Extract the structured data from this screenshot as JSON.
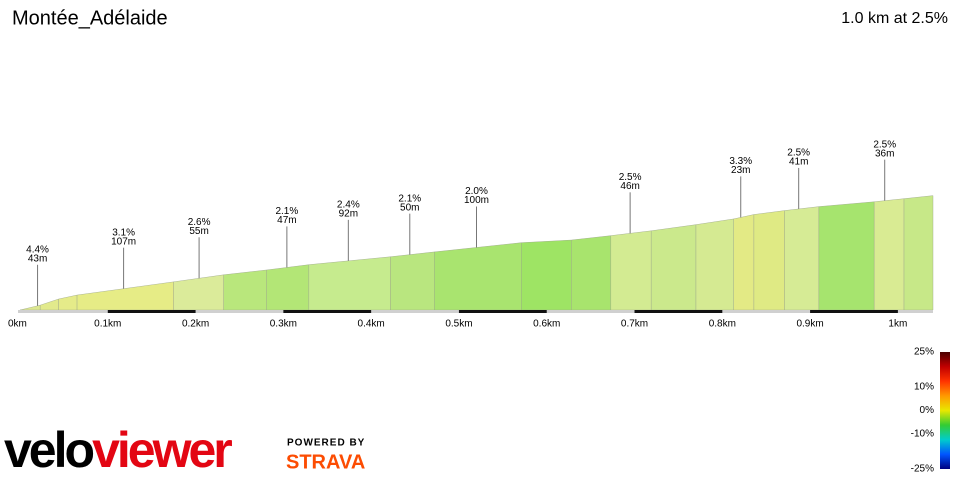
{
  "chart_data": {
    "type": "elevation-profile",
    "title": "Montée_Adélaide",
    "summary": "1.0 km at 2.5%",
    "x": [
      0,
      0.023,
      0.044,
      0.065,
      0.175,
      0.232,
      0.281,
      0.329,
      0.422,
      0.472,
      0.571,
      0.628,
      0.673,
      0.719,
      0.77,
      0.813,
      0.836,
      0.871,
      0.91,
      0.973,
      1.007,
      1.04
    ],
    "elevation": [
      0,
      1.1,
      2.5,
      3.4,
      6.4,
      8.0,
      9.1,
      10.3,
      12.1,
      13.2,
      15.3,
      15.9,
      16.9,
      18.0,
      19.4,
      20.7,
      21.7,
      22.6,
      23.5,
      24.6,
      25.3,
      26.0
    ],
    "segment_colors": [
      "#dde890",
      "#e2ea8c",
      "#e5eb89",
      "#e6ec86",
      "#dbeb9a",
      "#b9e77c",
      "#b3e676",
      "#c6eb8e",
      "#b9e67f",
      "#a9e46f",
      "#9ee464",
      "#a8e46d",
      "#d3eb92",
      "#cbe98c",
      "#d5ea92",
      "#e3ea85",
      "#dfea84",
      "#d6eb95",
      "#a6e46e",
      "#d9eb93",
      "#c7e888"
    ],
    "xlim": [
      0,
      1.04
    ],
    "ylim": [
      0,
      30
    ],
    "xticks": [
      {
        "value": 0,
        "label": "0km"
      },
      {
        "value": 0.1,
        "label": "0.1km"
      },
      {
        "value": 0.2,
        "label": "0.2km"
      },
      {
        "value": 0.3,
        "label": "0.3km"
      },
      {
        "value": 0.4,
        "label": "0.4km"
      },
      {
        "value": 0.5,
        "label": "0.5km"
      },
      {
        "value": 0.6,
        "label": "0.6km"
      },
      {
        "value": 0.7,
        "label": "0.7km"
      },
      {
        "value": 0.8,
        "label": "0.8km"
      },
      {
        "value": 0.9,
        "label": "0.9km"
      },
      {
        "value": 1,
        "label": "1km"
      }
    ],
    "annotations": [
      {
        "x": 0.02,
        "grade": {
          "value": 4.4,
          "label": "4.4%"
        },
        "length": {
          "value": 43,
          "label": "43m"
        }
      },
      {
        "x": 0.118,
        "grade": {
          "value": 3.1,
          "label": "3.1%"
        },
        "length": {
          "value": 107,
          "label": "107m"
        }
      },
      {
        "x": 0.204,
        "grade": {
          "value": 2.6,
          "label": "2.6%"
        },
        "length": {
          "value": 55,
          "label": "55m"
        }
      },
      {
        "x": 0.304,
        "grade": {
          "value": 2.1,
          "label": "2.1%"
        },
        "length": {
          "value": 47,
          "label": "47m"
        }
      },
      {
        "x": 0.374,
        "grade": {
          "value": 2.4,
          "label": "2.4%"
        },
        "length": {
          "value": 92,
          "label": "92m"
        }
      },
      {
        "x": 0.444,
        "grade": {
          "value": 2.1,
          "label": "2.1%"
        },
        "length": {
          "value": 50,
          "label": "50m"
        }
      },
      {
        "x": 0.52,
        "grade": {
          "value": 2.0,
          "label": "2.0%"
        },
        "length": {
          "value": 100,
          "label": "100m"
        }
      },
      {
        "x": 0.695,
        "grade": {
          "value": 2.5,
          "label": "2.5%"
        },
        "length": {
          "value": 46,
          "label": "46m"
        }
      },
      {
        "x": 0.821,
        "grade": {
          "value": 3.3,
          "label": "3.3%"
        },
        "length": {
          "value": 23,
          "label": "23m"
        }
      },
      {
        "x": 0.887,
        "grade": {
          "value": 2.5,
          "label": "2.5%"
        },
        "length": {
          "value": 41,
          "label": "41m"
        }
      },
      {
        "x": 0.985,
        "grade": {
          "value": 2.5,
          "label": "2.5%"
        },
        "length": {
          "value": 36,
          "label": "36m"
        }
      }
    ],
    "color_scale": {
      "ticks": [
        {
          "value": 25,
          "label": "25%"
        },
        {
          "value": 10,
          "label": "10%"
        },
        {
          "value": 0,
          "label": "0%"
        },
        {
          "value": -10,
          "label": "-10%"
        },
        {
          "value": -25,
          "label": "-25%"
        }
      ],
      "colors": [
        "#4a0000",
        "#c00000",
        "#ff3300",
        "#ff9900",
        "#e8e800",
        "#33cc33",
        "#00cccc",
        "#0055ff",
        "#000080"
      ]
    },
    "branding": {
      "velo": "velo",
      "viewer": "viewer",
      "powered_by": "POWERED BY",
      "strava": "STRAVA"
    }
  }
}
